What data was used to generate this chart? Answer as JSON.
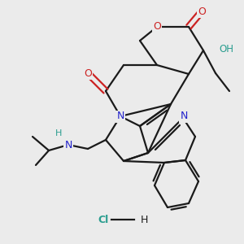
{
  "bg_color": "#ebebeb",
  "bond_color": "#1a1a1a",
  "N_color": "#2222cc",
  "O_color": "#cc2222",
  "OH_color": "#2a9d8f",
  "Cl_color": "#2a9d8f",
  "lw": 1.6,
  "fig_size": [
    3.0,
    3.0
  ],
  "dpi": 100,
  "xlim": [
    0,
    300
  ],
  "ylim": [
    0,
    300
  ]
}
